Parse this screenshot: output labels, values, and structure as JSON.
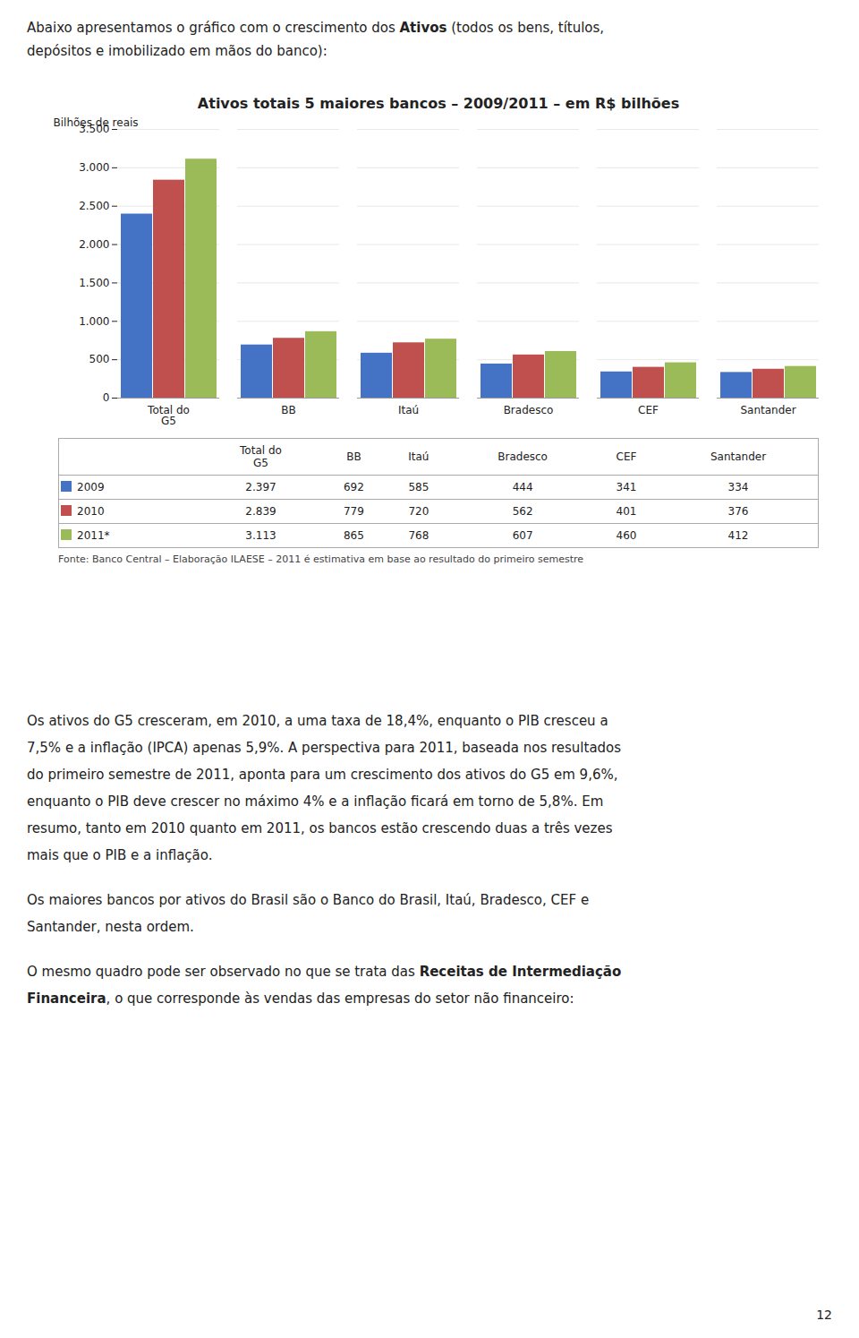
{
  "chart_data": {
    "type": "bar",
    "title": "Ativos totais 5 maiores bancos – 2009/2011 – em R$ bilhões",
    "ylabel": "Bilhões de reais",
    "categories": [
      "Total do\nG5",
      "BB",
      "Itaú",
      "Bradesco",
      "CEF",
      "Santander"
    ],
    "series": [
      {
        "name": "2009",
        "color": "#4472C4",
        "values": [
          2397,
          692,
          585,
          444,
          341,
          334
        ]
      },
      {
        "name": "2010",
        "color": "#C0504D",
        "values": [
          2839,
          779,
          720,
          562,
          401,
          376
        ]
      },
      {
        "name": "2011*",
        "color": "#9BBB59",
        "values": [
          3113,
          865,
          768,
          607,
          460,
          412
        ]
      }
    ],
    "ylim": [
      0,
      3500
    ],
    "yticks": [
      0,
      500,
      {
        "value": 1000,
        "label": "1.000"
      },
      {
        "value": 1500,
        "label": "1.500"
      },
      {
        "value": 2000,
        "label": "2.000"
      },
      {
        "value": 2500,
        "label": "2.500"
      },
      {
        "value": 3000,
        "label": "3.000"
      },
      {
        "value": 3500,
        "label": "3.500"
      }
    ],
    "grid": true,
    "table": {
      "headers": [
        "Total do\nG5",
        "BB",
        "Itaú",
        "Bradesco",
        "CEF",
        "Santander"
      ],
      "rows": [
        {
          "name": "2009",
          "labels": [
            "2.397",
            "692",
            "585",
            "444",
            "341",
            "334"
          ]
        },
        {
          "name": "2010",
          "labels": [
            "2.839",
            "779",
            "720",
            "562",
            "401",
            "376"
          ]
        },
        {
          "name": "2011*",
          "labels": [
            "3.113",
            "865",
            "768",
            "607",
            "460",
            "412"
          ]
        }
      ]
    },
    "source": "Fonte: Banco Central – Elaboração ILAESE – 2011 é estimativa em base ao resultado do primeiro semestre"
  },
  "intro": [
    [
      {
        "text": "Abaixo apresentamos o gráfico com o crescimento dos "
      },
      {
        "text": "Ativos",
        "bold": true
      },
      {
        "text": " (todos os bens, títulos,"
      }
    ],
    [
      {
        "text": "depósitos e imobilizado em mãos do banco):"
      }
    ]
  ],
  "paragraphs": [
    [
      [
        {
          "text": "Os ativos do G5 cresceram, em 2010, a uma taxa de 18,4%, enquanto o PIB cresceu a"
        }
      ],
      [
        {
          "text": "7,5% e a inflação (IPCA) apenas 5,9%. A perspectiva para 2011, baseada nos resultados"
        }
      ],
      [
        {
          "text": "do primeiro semestre de 2011, aponta para um crescimento dos ativos do G5 em 9,6%,"
        }
      ],
      [
        {
          "text": "enquanto o PIB deve crescer no máximo 4% e a inflação ficará em torno de 5,8%. Em"
        }
      ],
      [
        {
          "text": "resumo, tanto em 2010 quanto em 2011, os bancos estão crescendo duas a três vezes"
        }
      ],
      [
        {
          "text": "mais que o PIB e a inflação."
        }
      ]
    ],
    [
      [
        {
          "text": "Os maiores bancos por ativos do Brasil são o Banco do Brasil, Itaú, Bradesco, CEF e"
        }
      ],
      [
        {
          "text": "Santander, nesta ordem."
        }
      ]
    ],
    [
      [
        {
          "text": "O mesmo quadro pode ser observado no que se trata das "
        },
        {
          "text": "Receitas de Intermediação",
          "bold": true
        }
      ],
      [
        {
          "text": "Financeira",
          "bold": true
        },
        {
          "text": ", o que corresponde às vendas das empresas do setor não financeiro:"
        }
      ]
    ]
  ],
  "page_number": "12"
}
